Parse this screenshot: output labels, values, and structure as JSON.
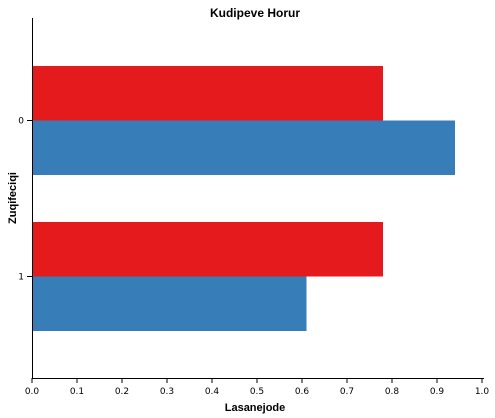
{
  "chart_data": {
    "type": "bar",
    "orientation": "horizontal",
    "title": "Kudipeve Horur",
    "xlabel": "Lasanejode",
    "ylabel": "Zuqifeciqi",
    "categories": [
      "0",
      "1"
    ],
    "series": [
      {
        "color": "#e41a1c",
        "values": [
          0.78,
          0.78
        ]
      },
      {
        "color": "#377eb8",
        "values": [
          0.94,
          0.61
        ]
      }
    ],
    "xlim": [
      0,
      1
    ],
    "xticks": [
      "0.0",
      "0.1",
      "0.2",
      "0.3",
      "0.4",
      "0.5",
      "0.6",
      "0.7",
      "0.8",
      "0.9",
      "1.0"
    ],
    "grid": false,
    "legend": false
  }
}
